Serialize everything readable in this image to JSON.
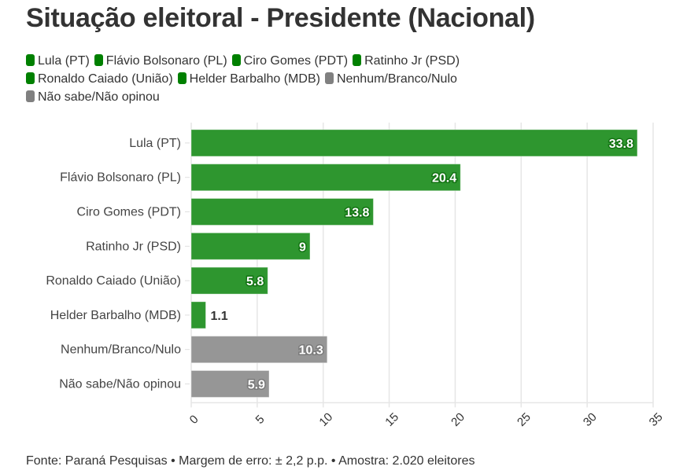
{
  "chart_data": {
    "type": "bar",
    "orientation": "horizontal",
    "title": "Situação eleitoral - Presidente (Nacional)",
    "xlabel": "",
    "ylabel": "",
    "xlim": [
      0,
      35
    ],
    "xticks": [
      0,
      5,
      10,
      15,
      20,
      25,
      30,
      35
    ],
    "grid": true,
    "legend_position": "top-left",
    "categories": [
      "Lula (PT)",
      "Flávio Bolsonaro (PL)",
      "Ciro Gomes (PDT)",
      "Ratinho Jr (PSD)",
      "Ronaldo Caiado (União)",
      "Helder Barbalho (MDB)",
      "Nenhum/Branco/Nulo",
      "Não sabe/Não opinou"
    ],
    "values": [
      33.8,
      20.4,
      13.8,
      9,
      5.8,
      1.1,
      10.3,
      5.9
    ],
    "value_labels": [
      "33.8",
      "20.4",
      "13.8",
      "9",
      "5.8",
      "1.1",
      "10.3",
      "5.9"
    ],
    "colors": [
      "#2e962f",
      "#2e962f",
      "#2e962f",
      "#2e962f",
      "#2e962f",
      "#2e962f",
      "#969696",
      "#969696"
    ],
    "legend": [
      {
        "label": "Lula (PT)",
        "color": "#008000"
      },
      {
        "label": "Flávio Bolsonaro (PL)",
        "color": "#008000"
      },
      {
        "label": "Ciro Gomes (PDT)",
        "color": "#008000"
      },
      {
        "label": "Ratinho Jr (PSD)",
        "color": "#008000"
      },
      {
        "label": "Ronaldo Caiado (União)",
        "color": "#008000"
      },
      {
        "label": "Helder Barbalho (MDB)",
        "color": "#008000"
      },
      {
        "label": "Nenhum/Branco/Nulo",
        "color": "#808080"
      },
      {
        "label": "Não sabe/Não opinou",
        "color": "#808080"
      }
    ]
  },
  "footer": "Fonte: Paraná Pesquisas • Margem de erro: ± 2,2 p.p. • Amostra: 2.020 eleitores"
}
